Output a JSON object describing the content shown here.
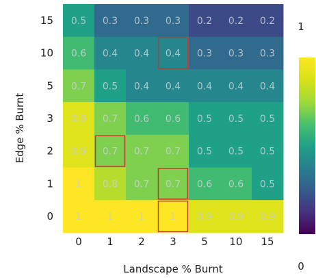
{
  "chart_data": {
    "type": "heatmap",
    "xlabel": "Landscape % Burnt",
    "ylabel": "Edge % Burnt",
    "x_categories": [
      "0",
      "1",
      "2",
      "3",
      "5",
      "10",
      "15"
    ],
    "y_categories": [
      "15",
      "10",
      "5",
      "3",
      "2",
      "1",
      "0"
    ],
    "values": [
      [
        0.5,
        0.3,
        0.3,
        0.3,
        0.2,
        0.2,
        0.2
      ],
      [
        0.6,
        0.4,
        0.4,
        0.4,
        0.3,
        0.3,
        0.3
      ],
      [
        0.7,
        0.5,
        0.4,
        0.4,
        0.4,
        0.4,
        0.4
      ],
      [
        0.9,
        0.7,
        0.6,
        0.6,
        0.5,
        0.5,
        0.5
      ],
      [
        0.9,
        0.7,
        0.7,
        0.7,
        0.5,
        0.5,
        0.5
      ],
      [
        1,
        0.8,
        0.7,
        0.7,
        0.6,
        0.6,
        0.5
      ],
      [
        1,
        1,
        1,
        1,
        0.9,
        0.9,
        0.9
      ]
    ],
    "highlighted_cells": [
      {
        "row": 1,
        "col": 3
      },
      {
        "row": 4,
        "col": 1
      },
      {
        "row": 5,
        "col": 3
      },
      {
        "row": 6,
        "col": 3
      }
    ],
    "highlight_color": "#c0392b",
    "colormap": "viridis",
    "colorbar": {
      "min": 0,
      "max": 1,
      "min_label": "0",
      "max_label": "1"
    }
  }
}
